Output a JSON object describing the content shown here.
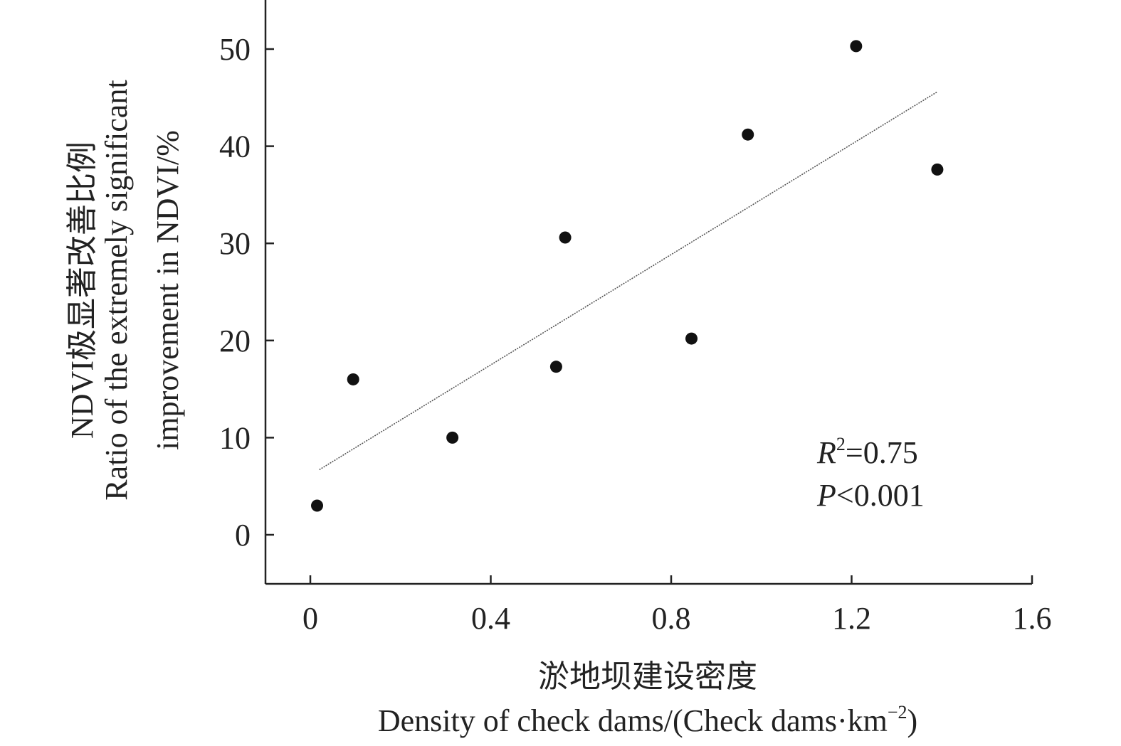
{
  "chart_data": {
    "type": "scatter",
    "xlim": [
      -0.1,
      1.6
    ],
    "ylim": [
      -5,
      55
    ],
    "x_ticks": [
      0,
      0.4,
      0.8,
      1.2,
      1.6
    ],
    "x_tick_labels": [
      "0",
      "0.4",
      "0.8",
      "1.2",
      "1.6"
    ],
    "y_ticks": [
      0,
      10,
      20,
      30,
      40,
      50
    ],
    "y_tick_labels": [
      "0",
      "10",
      "20",
      "30",
      "40",
      "50"
    ],
    "xlabel_cn": "淤地坝建设密度",
    "xlabel_en_prefix": "Density of check dams/(Check dams·km",
    "xlabel_en_sup": "−2",
    "xlabel_en_suffix": ")",
    "ylabel_cn": "NDVI极显著改善比例",
    "ylabel_en_line1": "Ratio of the extremely significant",
    "ylabel_en_line2": "improvement in NDVI/%",
    "points": [
      {
        "x": 0.015,
        "y": 3
      },
      {
        "x": 0.095,
        "y": 16
      },
      {
        "x": 0.315,
        "y": 10
      },
      {
        "x": 0.545,
        "y": 17.3
      },
      {
        "x": 0.565,
        "y": 30.6
      },
      {
        "x": 0.845,
        "y": 20.2
      },
      {
        "x": 0.97,
        "y": 41.2
      },
      {
        "x": 1.21,
        "y": 50.3
      },
      {
        "x": 1.39,
        "y": 37.6
      }
    ],
    "trendline": {
      "x": [
        0.02,
        1.39
      ],
      "y": [
        6.7,
        45.6
      ]
    },
    "annotation": {
      "r_label": "R",
      "r_sup": "2",
      "r_value": "=0.75",
      "p_label": "P",
      "p_value": "<0.001"
    },
    "grid": false,
    "colors": {
      "points": "#111111",
      "axis": "#222222",
      "trend": "#555555"
    }
  }
}
